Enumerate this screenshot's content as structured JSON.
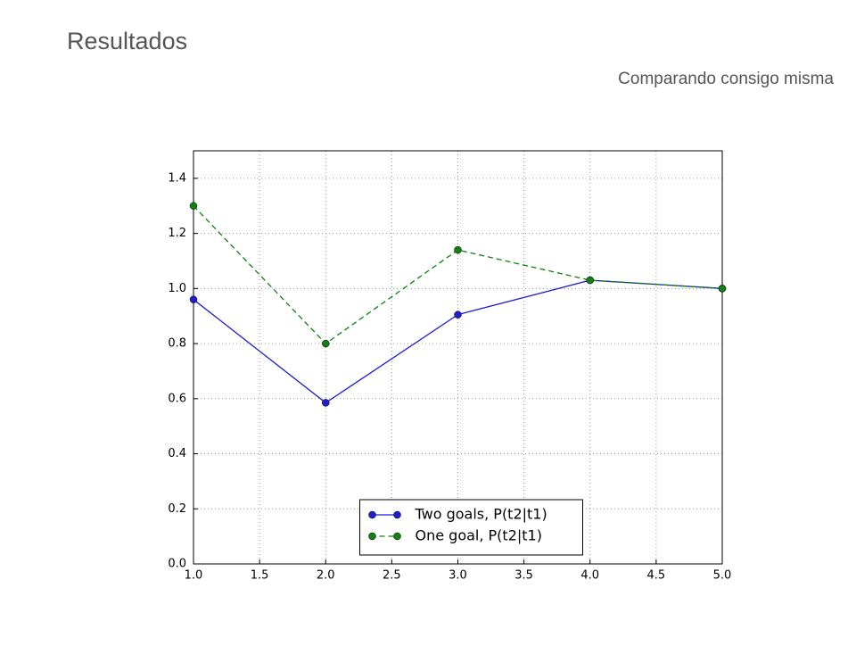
{
  "header": {
    "title": "Resultados",
    "subtitle": "Comparando consigo misma"
  },
  "chart_data": {
    "type": "line",
    "x": [
      1,
      2,
      3,
      4,
      5
    ],
    "series": [
      {
        "name": "Two goals, P(t2|t1)",
        "color": "#1f1fd0",
        "linestyle": "solid",
        "values": [
          0.96,
          0.585,
          0.905,
          1.03,
          1.0
        ]
      },
      {
        "name": "One goal, P(t2|t1)",
        "color": "#127f12",
        "linestyle": "dashed",
        "values": [
          1.3,
          0.8,
          1.14,
          1.03,
          1.0
        ]
      }
    ],
    "xlim": [
      1,
      5
    ],
    "xticks": [
      {
        "value": 1,
        "label": "1.0"
      },
      1.5,
      {
        "value": 2,
        "label": "2.0"
      },
      2.5,
      {
        "value": 3,
        "label": "3.0"
      },
      3.5,
      {
        "value": 4,
        "label": "4.0"
      },
      4.5,
      {
        "value": 5,
        "label": "5.0"
      }
    ],
    "ylim": [
      0,
      1.5
    ],
    "yticks": [
      {
        "value": 0,
        "label": "0.0"
      },
      0.2,
      0.4,
      0.6,
      0.8,
      {
        "value": 1,
        "label": "1.0"
      },
      1.2,
      1.4
    ],
    "grid": true,
    "legend": "lower center"
  }
}
